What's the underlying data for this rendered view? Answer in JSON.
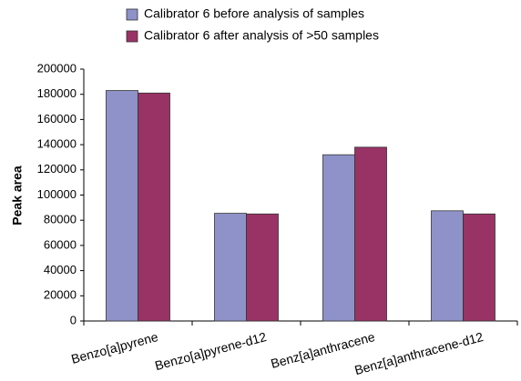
{
  "chart_data": {
    "type": "bar",
    "y_label": "Peak area",
    "categories": [
      "Benzo[a]pyrene",
      "Benzo[a]pyrene-d12",
      "Benz[a]anthracene",
      "Benz[a]anthracene-d12"
    ],
    "series": [
      {
        "name": "Calibrator 6 before analysis of samples",
        "color": "#8e92c8",
        "values": [
          183000,
          85500,
          132000,
          87500
        ]
      },
      {
        "name": "Calibrator 6 after analysis of >50 samples",
        "color": "#993366",
        "values": [
          181000,
          85000,
          138000,
          85000
        ]
      }
    ],
    "ylim": [
      0,
      200000
    ],
    "yticks": [
      0,
      20000,
      40000,
      60000,
      80000,
      100000,
      120000,
      140000,
      160000,
      180000,
      200000
    ],
    "grid": false
  }
}
